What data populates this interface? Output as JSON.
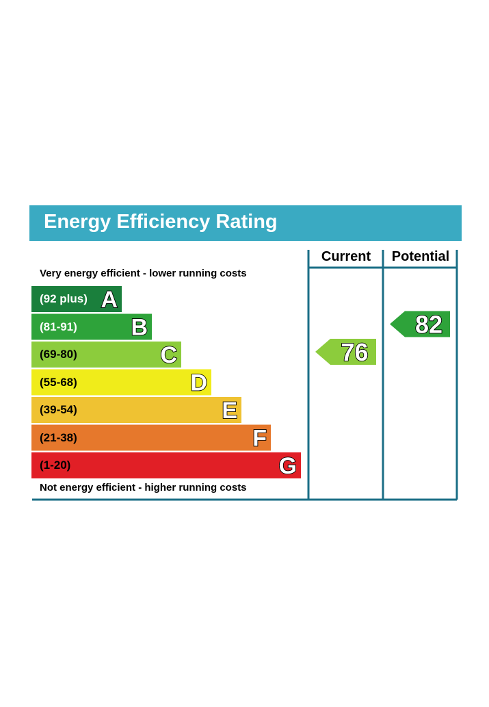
{
  "header": {
    "title": "Energy Efficiency Rating"
  },
  "columns": {
    "current": "Current",
    "potential": "Potential"
  },
  "notes": {
    "top": "Very energy efficient - lower running costs",
    "bottom": "Not energy efficient - higher running costs"
  },
  "chart_data": {
    "type": "bar",
    "categories": [
      "A",
      "B",
      "C",
      "D",
      "E",
      "F",
      "G"
    ],
    "bands": [
      {
        "letter": "A",
        "range": "(92 plus)",
        "color": "#1a7f3c",
        "text_color": "#ffffff"
      },
      {
        "letter": "B",
        "range": "(81-91)",
        "color": "#2ea33a",
        "text_color": "#ffffff"
      },
      {
        "letter": "C",
        "range": "(69-80)",
        "color": "#8ccc3c",
        "text_color": "#000000"
      },
      {
        "letter": "D",
        "range": "(55-68)",
        "color": "#f0ec1a",
        "text_color": "#000000"
      },
      {
        "letter": "E",
        "range": "(39-54)",
        "color": "#efc232",
        "text_color": "#000000"
      },
      {
        "letter": "F",
        "range": "(21-38)",
        "color": "#e6782c",
        "text_color": "#000000"
      },
      {
        "letter": "G",
        "range": "(1-20)",
        "color": "#e11f26",
        "text_color": "#000000"
      }
    ],
    "current": {
      "value": "76",
      "band": "C",
      "color": "#8ccc3c"
    },
    "potential": {
      "value": "82",
      "band": "B",
      "color": "#2ea33a"
    },
    "frame_color": "#1a6e86"
  }
}
